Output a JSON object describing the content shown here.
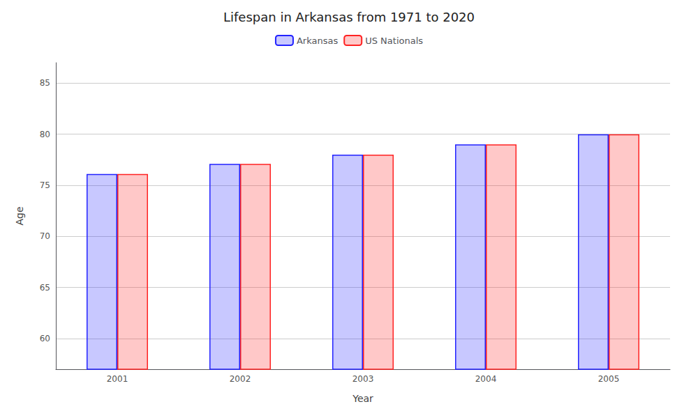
{
  "chart_data": {
    "type": "bar",
    "title": "Lifespan in Arkansas from 1971 to 2020",
    "xlabel": "Year",
    "ylabel": "Age",
    "categories": [
      "2001",
      "2002",
      "2003",
      "2004",
      "2005"
    ],
    "series": [
      {
        "name": "Arkansas",
        "color": "#2222ff",
        "values": [
          76.1,
          77.1,
          78.0,
          79.0,
          80.0
        ]
      },
      {
        "name": "US Nationals",
        "color": "#ff2222",
        "values": [
          76.1,
          77.1,
          78.0,
          79.0,
          80.0
        ]
      }
    ],
    "ylim": [
      57,
      87
    ],
    "yticks": [
      60,
      65,
      70,
      75,
      80,
      85
    ],
    "grid": true,
    "legend": "top"
  }
}
